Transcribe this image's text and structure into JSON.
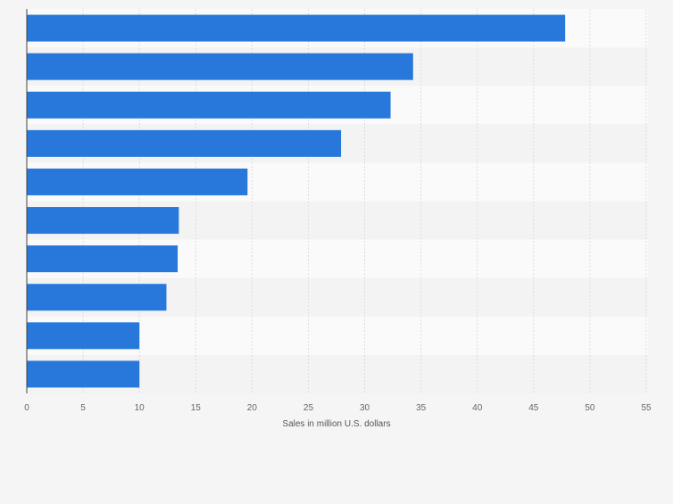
{
  "chart_data": {
    "type": "bar",
    "orientation": "horizontal",
    "categories": [
      "",
      "",
      "",
      "",
      "",
      "",
      "",
      "",
      "",
      ""
    ],
    "values": [
      47.8,
      34.3,
      32.3,
      27.9,
      19.6,
      13.5,
      13.4,
      12.4,
      10.0,
      10.0
    ],
    "title": "",
    "xlabel": "Sales in million U.S. dollars",
    "ylabel": "",
    "xlim": [
      0,
      55
    ],
    "xticks": [
      0,
      5,
      10,
      15,
      20,
      25,
      30,
      35,
      40,
      45,
      50,
      55
    ],
    "grid": true,
    "legend": "none",
    "colors": {
      "bar": "#2878dc",
      "band_light": "#fafafa",
      "band_dark": "#f3f3f3",
      "grid": "#dcdcdc",
      "axis": "#444444"
    }
  }
}
